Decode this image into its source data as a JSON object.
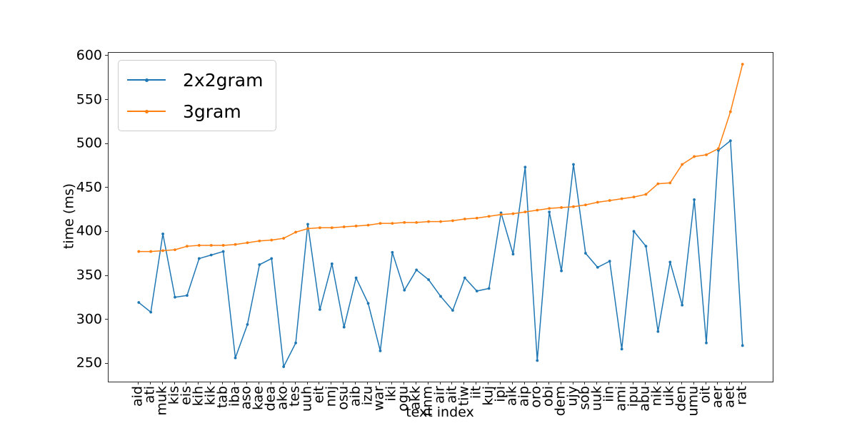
{
  "chart_data": {
    "type": "line",
    "title": "",
    "xlabel": "text index",
    "ylabel": "time (ms)",
    "grid": false,
    "legend_position": "upper left",
    "ylim": [
      230,
      604
    ],
    "xlim": [
      -2.5,
      52.5
    ],
    "yticks": [
      250,
      300,
      350,
      400,
      450,
      500,
      550,
      600
    ],
    "categories": [
      "aid",
      "ati",
      "muk",
      "kis",
      "eis",
      "kih",
      "kik",
      "tab",
      "iba",
      "aso",
      "kae",
      "dea",
      "ako",
      "tes",
      "uuh",
      "eit",
      "nnj",
      "osu",
      "aib",
      "izu",
      "war",
      "iki",
      "ogu",
      "akk",
      "nnm",
      "air",
      "ait",
      "tiw",
      "iit",
      "kuj",
      "ipi",
      "aik",
      "aip",
      "oro",
      "obi",
      "dem",
      "ujy",
      "sob",
      "uuk",
      "iin",
      "ami",
      "ipu",
      "abu",
      "nik",
      "uik",
      "den",
      "umu",
      "oit",
      "aer",
      "aet",
      "rat"
    ],
    "series": [
      {
        "name": "2x2gram",
        "color": "#1f77b4",
        "values": [
          320,
          309,
          398,
          326,
          328,
          370,
          374,
          378,
          257,
          295,
          363,
          370,
          247,
          274,
          409,
          312,
          364,
          292,
          348,
          319,
          265,
          377,
          334,
          357,
          346,
          327,
          311,
          348,
          333,
          336,
          422,
          375,
          474,
          254,
          423,
          356,
          477,
          376,
          360,
          367,
          267,
          401,
          384,
          287,
          366,
          317,
          437,
          274,
          493,
          504,
          271
        ]
      },
      {
        "name": "3gram",
        "color": "#ff7f0e",
        "values": [
          378,
          378,
          379,
          380,
          384,
          385,
          385,
          385,
          386,
          388,
          390,
          391,
          393,
          400,
          404,
          405,
          405,
          406,
          407,
          408,
          410,
          410,
          411,
          411,
          412,
          412,
          413,
          415,
          416,
          418,
          420,
          421,
          423,
          425,
          427,
          428,
          429,
          431,
          434,
          436,
          438,
          440,
          443,
          455,
          456,
          477,
          486,
          488,
          495,
          537,
          591
        ]
      }
    ]
  }
}
